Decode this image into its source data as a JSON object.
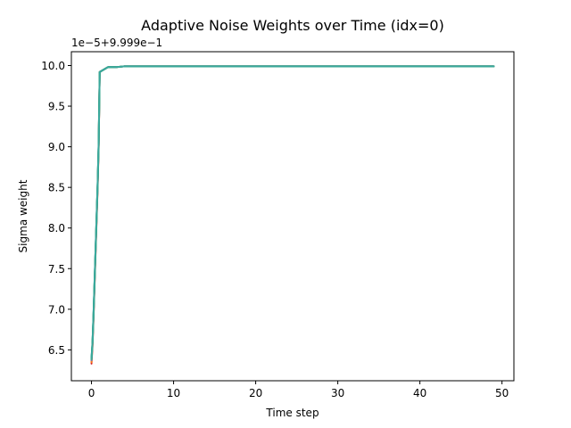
{
  "chart_data": {
    "type": "line",
    "title": "Adaptive Noise Weights over Time (idx=0)",
    "xlabel": "Time step",
    "ylabel": "Sigma weight",
    "offset_label": "1e−5+9.999e−1",
    "xlim": [
      -2.45,
      51.45
    ],
    "ylim": [
      6.12,
      10.17
    ],
    "xticks": [
      0,
      10,
      20,
      30,
      40,
      50
    ],
    "xtick_labels": [
      "0",
      "10",
      "20",
      "30",
      "40",
      "50"
    ],
    "yticks": [
      6.5,
      7.0,
      7.5,
      8.0,
      8.5,
      9.0,
      9.5,
      10.0
    ],
    "ytick_labels": [
      "6.5",
      "7.0",
      "7.5",
      "8.0",
      "8.5",
      "9.0",
      "9.5",
      "10.0"
    ],
    "grid": false,
    "legend": "none",
    "note": "y values are shown relative to the offset 1e-5+9.999e-1",
    "series": [
      {
        "color": "#d62728",
        "x": [
          0,
          0.125,
          0.25,
          0.375,
          0.5,
          0.625,
          0.75,
          0.875,
          1,
          1.5,
          2,
          3,
          4,
          5,
          10,
          20,
          30,
          40,
          49
        ],
        "values": [
          6.33,
          6.55,
          6.9,
          7.3,
          7.7,
          8.1,
          8.5,
          9.0,
          9.92,
          9.95,
          9.98,
          9.98,
          9.99,
          9.99,
          9.99,
          9.99,
          9.99,
          9.99,
          9.99
        ]
      },
      {
        "color": "#ff7f0e",
        "x": [
          0,
          0.125,
          0.25,
          0.375,
          0.5,
          0.625,
          0.75,
          0.875,
          1,
          1.5,
          2,
          3,
          4,
          5,
          10,
          20,
          30,
          40,
          49
        ],
        "values": [
          6.35,
          6.57,
          6.92,
          7.32,
          7.72,
          8.12,
          8.52,
          9.02,
          9.92,
          9.95,
          9.98,
          9.98,
          9.99,
          9.99,
          9.99,
          9.99,
          9.99,
          9.99,
          9.99
        ]
      },
      {
        "color": "#9467bd",
        "x": [
          0,
          0.125,
          0.25,
          0.375,
          0.5,
          0.625,
          0.75,
          0.875,
          1,
          1.5,
          2,
          3,
          4,
          5,
          10,
          20,
          30,
          40,
          49
        ],
        "values": [
          6.37,
          6.58,
          6.93,
          7.33,
          7.73,
          8.13,
          8.53,
          9.03,
          9.92,
          9.95,
          9.98,
          9.98,
          9.99,
          9.99,
          9.99,
          9.99,
          9.99,
          9.99,
          9.99
        ]
      },
      {
        "color": "#17becf",
        "x": [
          0,
          0.125,
          0.25,
          0.375,
          0.5,
          0.625,
          0.75,
          0.875,
          1,
          1.5,
          2,
          3,
          4,
          5,
          10,
          20,
          30,
          40,
          49
        ],
        "values": [
          6.4,
          6.6,
          6.95,
          7.35,
          7.75,
          8.15,
          8.55,
          9.05,
          9.92,
          9.95,
          9.98,
          9.98,
          9.99,
          9.99,
          9.99,
          9.99,
          9.99,
          9.99,
          9.99
        ]
      },
      {
        "color": "#2ca02c",
        "x": [
          0,
          0.125,
          0.25,
          0.375,
          0.5,
          0.625,
          0.75,
          0.875,
          1,
          1.5,
          2,
          3,
          4,
          5,
          10,
          20,
          30,
          40,
          49
        ],
        "values": [
          6.38,
          6.59,
          6.94,
          7.34,
          7.74,
          8.14,
          8.54,
          9.04,
          9.92,
          9.95,
          9.98,
          9.98,
          9.99,
          9.99,
          9.99,
          9.99,
          9.99,
          9.99,
          9.99
        ]
      },
      {
        "color": "#3aa99f",
        "x": [
          0,
          0.125,
          0.25,
          0.375,
          0.5,
          0.625,
          0.75,
          0.875,
          1,
          1.5,
          2,
          3,
          4,
          5,
          10,
          20,
          30,
          40,
          49
        ],
        "values": [
          6.38,
          6.6,
          6.95,
          7.35,
          7.75,
          8.15,
          8.55,
          9.05,
          9.92,
          9.95,
          9.98,
          9.98,
          9.99,
          9.99,
          9.99,
          9.99,
          9.99,
          9.99,
          9.99
        ]
      }
    ]
  }
}
